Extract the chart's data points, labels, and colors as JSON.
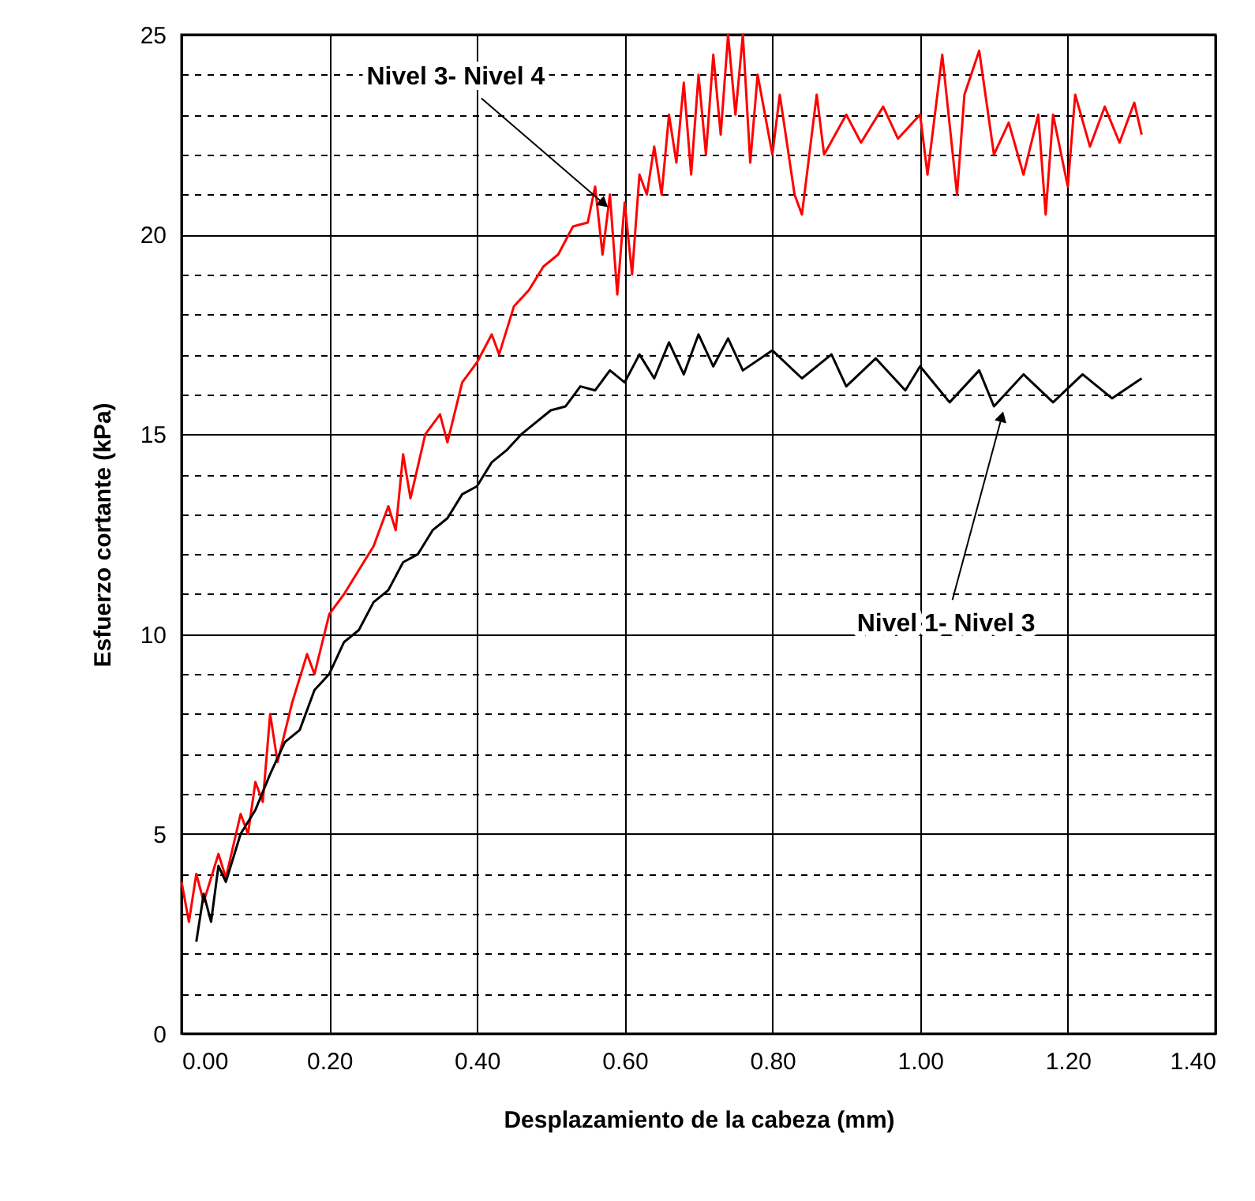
{
  "chart_data": {
    "type": "line",
    "xlabel": "Desplazamiento de la cabeza (mm)",
    "ylabel": "Esfuerzo cortante (kPa)",
    "xlim": [
      0,
      1.4
    ],
    "ylim": [
      0,
      25
    ],
    "xticks": [
      {
        "value": 0,
        "label": "0.00"
      },
      {
        "value": 0.2,
        "label": "0.20"
      },
      {
        "value": 0.4,
        "label": "0.40"
      },
      {
        "value": 0.6,
        "label": "0.60"
      },
      {
        "value": 0.8,
        "label": "0.80"
      },
      {
        "value": 1,
        "label": "1.00"
      },
      {
        "value": 1.2,
        "label": "1.20"
      },
      {
        "value": 1.4,
        "label": "1.40"
      }
    ],
    "yticks": [
      0,
      {
        "value": 1,
        "label": null
      },
      {
        "value": 2,
        "label": null
      },
      {
        "value": 3,
        "label": null
      },
      {
        "value": 4,
        "label": null
      },
      5,
      {
        "value": 6,
        "label": null
      },
      {
        "value": 7,
        "label": null
      },
      {
        "value": 8,
        "label": null
      },
      {
        "value": 9,
        "label": null
      },
      10,
      {
        "value": 11,
        "label": null
      },
      {
        "value": 12,
        "label": null
      },
      {
        "value": 13,
        "label": null
      },
      {
        "value": 14,
        "label": null
      },
      15,
      {
        "value": 16,
        "label": null
      },
      {
        "value": 17,
        "label": null
      },
      {
        "value": 18,
        "label": null
      },
      {
        "value": 19,
        "label": null
      },
      20,
      {
        "value": 21,
        "label": null
      },
      {
        "value": 22,
        "label": null
      },
      {
        "value": 23,
        "label": null
      },
      {
        "value": 24,
        "label": null
      },
      25
    ],
    "grid": true,
    "marker": "none",
    "line_style": "solid",
    "annotations": [
      {
        "text": "Nivel 3- Nivel 4",
        "x": 0.57,
        "y": 20.8
      },
      {
        "text": "Nivel 1- Nivel 3",
        "x": 1.11,
        "y": 15.4
      }
    ],
    "series": [
      {
        "color": "#ff0000",
        "x": [
          0,
          0.01,
          0.02,
          0.03,
          0.05,
          0.06,
          0.08,
          0.09,
          0.1,
          0.11,
          0.12,
          0.13,
          0.15,
          0.17,
          0.18,
          0.2,
          0.22,
          0.24,
          0.26,
          0.28,
          0.29,
          0.3,
          0.31,
          0.33,
          0.35,
          0.36,
          0.38,
          0.4,
          0.42,
          0.43,
          0.45,
          0.47,
          0.49,
          0.51,
          0.53,
          0.55,
          0.56,
          0.57,
          0.58,
          0.59,
          0.6,
          0.61,
          0.62,
          0.63,
          0.64,
          0.65,
          0.66,
          0.67,
          0.68,
          0.69,
          0.7,
          0.71,
          0.72,
          0.73,
          0.74,
          0.75,
          0.76,
          0.77,
          0.78,
          0.8,
          0.81,
          0.83,
          0.84,
          0.85,
          0.86,
          0.87,
          0.9,
          0.92,
          0.95,
          0.97,
          1,
          1.01,
          1.03,
          1.05,
          1.06,
          1.08,
          1.1,
          1.12,
          1.14,
          1.16,
          1.17,
          1.18,
          1.2,
          1.21,
          1.23,
          1.25,
          1.27,
          1.29,
          1.3
        ],
        "values": [
          3.8,
          2.8,
          4,
          3.3,
          4.5,
          3.9,
          5.5,
          5,
          6.3,
          5.8,
          8,
          6.8,
          8.3,
          9.5,
          9,
          10.5,
          11,
          11.6,
          12.2,
          13.2,
          12.6,
          14.5,
          13.4,
          15,
          15.5,
          14.8,
          16.3,
          16.8,
          17.5,
          17,
          18.2,
          18.6,
          19.2,
          19.5,
          20.2,
          20.3,
          21.2,
          19.5,
          21,
          18.5,
          20.8,
          19,
          21.5,
          21,
          22.2,
          21,
          23,
          21.8,
          23.8,
          21.5,
          24,
          22,
          24.5,
          22.5,
          25,
          23,
          25,
          21.8,
          24,
          22,
          23.5,
          21,
          20.5,
          22,
          23.5,
          22,
          23,
          22.3,
          23.2,
          22.4,
          23,
          21.5,
          24.5,
          21,
          23.5,
          24.6,
          22,
          22.8,
          21.5,
          23,
          20.5,
          23,
          21.2,
          23.5,
          22.2,
          23.2,
          22.3,
          23.3,
          22.5
        ]
      },
      {
        "color": "#000000",
        "x": [
          0.02,
          0.03,
          0.04,
          0.05,
          0.06,
          0.08,
          0.1,
          0.12,
          0.14,
          0.16,
          0.18,
          0.2,
          0.22,
          0.24,
          0.26,
          0.28,
          0.3,
          0.32,
          0.34,
          0.36,
          0.38,
          0.4,
          0.42,
          0.44,
          0.46,
          0.48,
          0.5,
          0.52,
          0.54,
          0.56,
          0.58,
          0.6,
          0.62,
          0.64,
          0.66,
          0.68,
          0.7,
          0.72,
          0.74,
          0.76,
          0.8,
          0.84,
          0.88,
          0.9,
          0.94,
          0.98,
          1,
          1.04,
          1.08,
          1.1,
          1.14,
          1.18,
          1.22,
          1.26,
          1.3
        ],
        "values": [
          2.3,
          3.5,
          2.8,
          4.2,
          3.8,
          5,
          5.6,
          6.5,
          7.3,
          7.6,
          8.6,
          9,
          9.8,
          10.1,
          10.8,
          11.1,
          11.8,
          12,
          12.6,
          12.9,
          13.5,
          13.7,
          14.3,
          14.6,
          15,
          15.3,
          15.6,
          15.7,
          16.2,
          16.1,
          16.6,
          16.3,
          17,
          16.4,
          17.3,
          16.5,
          17.5,
          16.7,
          17.4,
          16.6,
          17.1,
          16.4,
          17,
          16.2,
          16.9,
          16.1,
          16.7,
          15.8,
          16.6,
          15.7,
          16.5,
          15.8,
          16.5,
          15.9,
          16.4
        ]
      }
    ]
  }
}
